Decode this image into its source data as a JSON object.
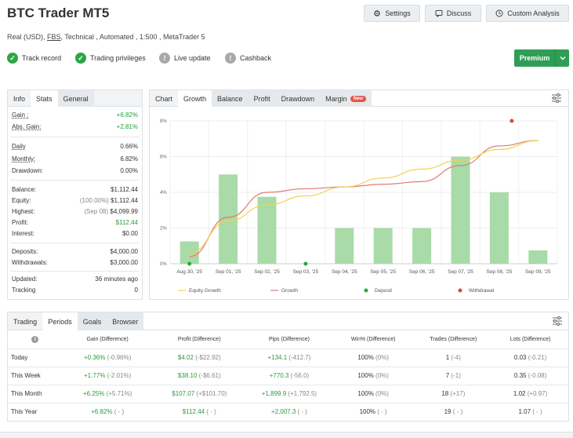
{
  "header": {
    "title": "BTC Trader MT5",
    "settings_label": "Settings",
    "discuss_label": "Discuss",
    "custom_label": "Custom Analysis",
    "subtitle_pre": "Real (USD),",
    "subtitle_broker": "FBS",
    "subtitle_post": ", Technical , Automated , 1:500 , MetaTrader 5",
    "premium_label": "Premium"
  },
  "status": [
    {
      "label": "Track record",
      "state": "ok"
    },
    {
      "label": "Trading privileges",
      "state": "ok"
    },
    {
      "label": "Live update",
      "state": "no"
    },
    {
      "label": "Cashback",
      "state": "no"
    }
  ],
  "left_tabs": [
    "Info",
    "Stats",
    "General"
  ],
  "stats": {
    "gain": {
      "k": "Gain :",
      "v": "+6.82%"
    },
    "abs_gain": {
      "k": "Abs. Gain:",
      "v": "+2.81%"
    },
    "daily": {
      "k": "Daily",
      "v": "0.66%"
    },
    "monthly": {
      "k": "Monthly:",
      "v": "6.82%"
    },
    "drawdown": {
      "k": "Drawdown:",
      "v": "0.00%"
    },
    "balance": {
      "k": "Balance:",
      "v": "$1,112.44"
    },
    "equity": {
      "k": "Equity:",
      "pre": "(100.00%)",
      "v": "$1,112.44"
    },
    "highest": {
      "k": "Highest:",
      "pre": "(Sep 08)",
      "v": "$4,099.99"
    },
    "profit": {
      "k": "Profit:",
      "v": "$112.44"
    },
    "interest": {
      "k": "Interest:",
      "v": "$0.00"
    },
    "deposits": {
      "k": "Deposits:",
      "v": "$4,000.00"
    },
    "withdrawals": {
      "k": "Withdrawals:",
      "v": "$3,000.00"
    },
    "updated": {
      "k": "Updated:",
      "v": "36 minutes ago"
    },
    "tracking": {
      "k": "Tracking",
      "v": "0"
    }
  },
  "chart_tabs": [
    "Chart",
    "Growth",
    "Balance",
    "Profit",
    "Drawdown",
    "Margin"
  ],
  "chart_new_badge": "New",
  "chart_data": {
    "type": "bar",
    "categories": [
      "Aug 30, '25",
      "Sep 01, '25",
      "Sep 02, '25",
      "Sep 03, '25",
      "Sep 04, '25",
      "Sep 05, '25",
      "Sep 06, '25",
      "Sep 07, '25",
      "Sep 08, '25",
      "Sep 09, '25"
    ],
    "yticks": [
      "0%",
      "2%",
      "4%",
      "6%",
      "8%"
    ],
    "ylim": [
      0,
      8
    ],
    "bars": [
      1.25,
      5.0,
      3.75,
      0,
      2.0,
      2.0,
      2.0,
      6.0,
      4.0,
      0.75
    ],
    "equity_growth": [
      0.6,
      2.4,
      3.3,
      3.8,
      4.3,
      4.8,
      5.3,
      5.8,
      6.4,
      6.9
    ],
    "growth": [
      0.4,
      2.6,
      4.0,
      4.2,
      4.3,
      4.45,
      4.6,
      5.5,
      6.6,
      6.9
    ],
    "deposit_points": [
      {
        "x": "Aug 30, '25",
        "y": 0
      },
      {
        "x": "Sep 03, '25",
        "y": 0
      }
    ],
    "withdrawal_points": [
      {
        "x": "Sep 08, '25",
        "y": 8
      }
    ],
    "legend": [
      "Equity Growth",
      "Growth",
      "Deposit",
      "Withdrawal"
    ],
    "colors": {
      "bar": "#a8dba8",
      "equity": "#f2d24a",
      "growth": "#e07b74",
      "deposit": "#2aa645",
      "withdrawal": "#e0443a"
    }
  },
  "bottom_tabs": [
    "Trading",
    "Periods",
    "Goals",
    "Browser"
  ],
  "periods": {
    "headers": [
      "Gain (Difference)",
      "Profit (Difference)",
      "Pips (Difference)",
      "Win% (Difference)",
      "Trades (Difference)",
      "Lots (Difference)"
    ],
    "rows": [
      {
        "label": "Today",
        "gain": "+0.36%",
        "gain_d": "(-0.96%)",
        "profit": "$4.02",
        "profit_d": "(-$22.92)",
        "pips": "+134.1",
        "pips_d": "(-412.7)",
        "win": "100%",
        "win_d": "(0%)",
        "trades": "1",
        "trades_d": "(-4)",
        "lots": "0.03",
        "lots_d": "(-0.21)"
      },
      {
        "label": "This Week",
        "gain": "+1.77%",
        "gain_d": "(-2.01%)",
        "profit": "$38.10",
        "profit_d": "(-$6.61)",
        "pips": "+770.3",
        "pips_d": "(-56.0)",
        "win": "100%",
        "win_d": "(0%)",
        "trades": "7",
        "trades_d": "(-1)",
        "lots": "0.35",
        "lots_d": "(-0.08)"
      },
      {
        "label": "This Month",
        "gain": "+6.25%",
        "gain_d": "(+5.71%)",
        "profit": "$107.07",
        "profit_d": "(+$101.70)",
        "pips": "+1,899.9",
        "pips_d": "(+1,792.5)",
        "win": "100%",
        "win_d": "(0%)",
        "trades": "18",
        "trades_d": "(+17)",
        "lots": "1.02",
        "lots_d": "(+0.97)"
      },
      {
        "label": "This Year",
        "gain": "+6.82%",
        "gain_d": "( - )",
        "profit": "$112.44",
        "profit_d": "( - )",
        "pips": "+2,007.3",
        "pips_d": "( - )",
        "win": "100%",
        "win_d": "( - )",
        "trades": "19",
        "trades_d": "( - )",
        "lots": "1.07",
        "lots_d": "( - )"
      }
    ]
  }
}
